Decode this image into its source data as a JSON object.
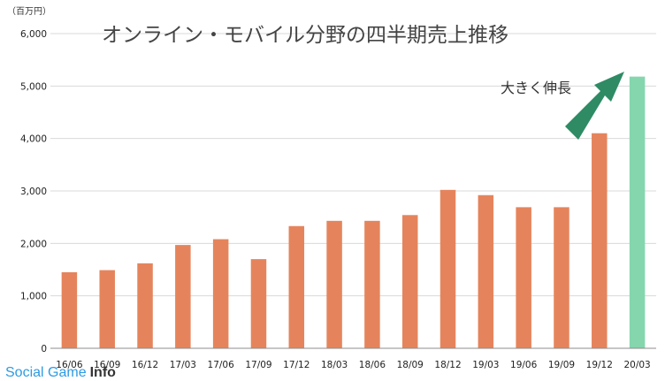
{
  "chart_data": {
    "type": "bar",
    "title": "オンライン・モバイル分野の四半期売上推移",
    "unit_label": "（百万円）",
    "ylim": [
      0,
      6000
    ],
    "yticks": [
      "0",
      "1,000",
      "2,000",
      "3,000",
      "4,000",
      "5,000",
      "6,000"
    ],
    "ytick_values": [
      0,
      1000,
      2000,
      3000,
      4000,
      5000,
      6000
    ],
    "grid": true,
    "categories": [
      "16/06",
      "16/09",
      "16/12",
      "17/03",
      "17/06",
      "17/09",
      "17/12",
      "18/03",
      "18/06",
      "18/09",
      "18/12",
      "19/03",
      "19/06",
      "19/09",
      "19/12",
      "20/03"
    ],
    "values": [
      1450,
      1490,
      1620,
      1970,
      2080,
      1700,
      2330,
      2430,
      2430,
      2540,
      3020,
      2920,
      2690,
      2690,
      4100,
      5180
    ],
    "colors": {
      "bar": "#e5845c",
      "highlight_bar": "#85d6ad",
      "arrow": "#2e8b64",
      "grid": "#d9d9d9",
      "axis": "#8c8c8c"
    },
    "highlight_index": 15,
    "annotation": "大きく伸長"
  },
  "watermark": {
    "part1": "Social Game",
    "part2": "Info"
  }
}
